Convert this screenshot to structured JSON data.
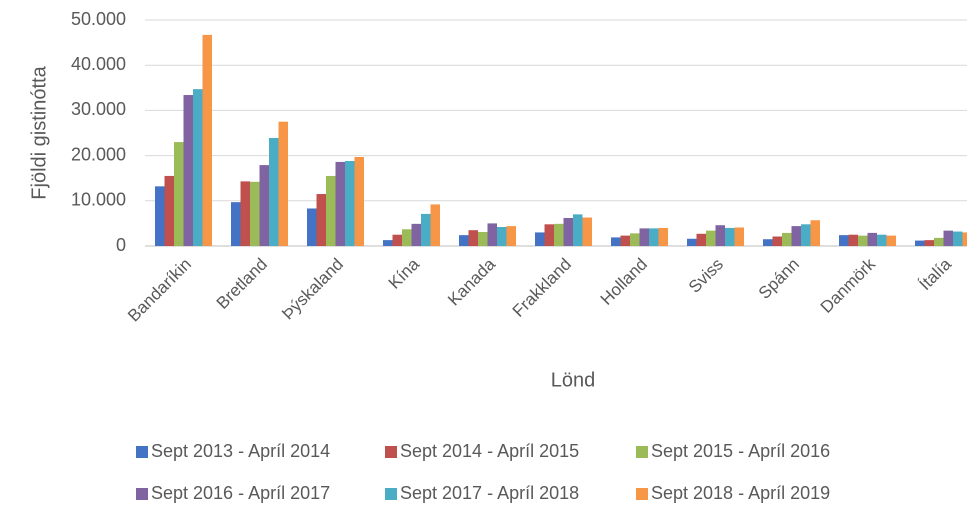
{
  "chart_data": {
    "type": "bar",
    "categories": [
      "Bandaríkin",
      "Bretland",
      "Þýskaland",
      "Kína",
      "Kanada",
      "Frakkland",
      "Holland",
      "Sviss",
      "Spánn",
      "Danmörk",
      "Ítalía"
    ],
    "series": [
      {
        "name": "Sept 2013 - Apríl 2014",
        "color": "#4472c4",
        "values": [
          13200,
          9700,
          8300,
          1300,
          2400,
          3000,
          1900,
          1600,
          1500,
          2400,
          1200
        ]
      },
      {
        "name": "Sept 2014 - Apríl 2015",
        "color": "#c0504d",
        "values": [
          15500,
          14300,
          11500,
          2500,
          3500,
          4800,
          2300,
          2700,
          2100,
          2500,
          1300
        ]
      },
      {
        "name": "Sept 2015 - Apríl 2016",
        "color": "#9bbb59",
        "values": [
          23000,
          14200,
          15500,
          3700,
          3100,
          4900,
          2800,
          3400,
          2900,
          2300,
          1800
        ]
      },
      {
        "name": "Sept 2016 - Apríl 2017",
        "color": "#8064a2",
        "values": [
          33400,
          17900,
          18600,
          4900,
          5000,
          6200,
          3900,
          4600,
          4400,
          2900,
          3400
        ]
      },
      {
        "name": "Sept 2017 - Apríl 2018",
        "color": "#4bacc6",
        "values": [
          34700,
          23900,
          18800,
          7100,
          4200,
          7000,
          3900,
          4000,
          4800,
          2500,
          3200
        ]
      },
      {
        "name": "Sept 2018 - Apríl 2019",
        "color": "#f79646",
        "values": [
          46700,
          27500,
          19700,
          9200,
          4400,
          6300,
          4000,
          4100,
          5700,
          2300,
          3000
        ]
      }
    ],
    "ylim": [
      0,
      50000
    ],
    "yticks": [
      0,
      {
        "value": 10000,
        "label": "10.000"
      },
      {
        "value": 20000,
        "label": "20.000"
      },
      {
        "value": 30000,
        "label": "30.000"
      },
      {
        "value": 40000,
        "label": "40.000"
      },
      {
        "value": 50000,
        "label": "50.000"
      }
    ],
    "grid": true,
    "x_label": "Lönd",
    "y_label": "Fjöldi gistinótta",
    "legend": "bottom"
  }
}
